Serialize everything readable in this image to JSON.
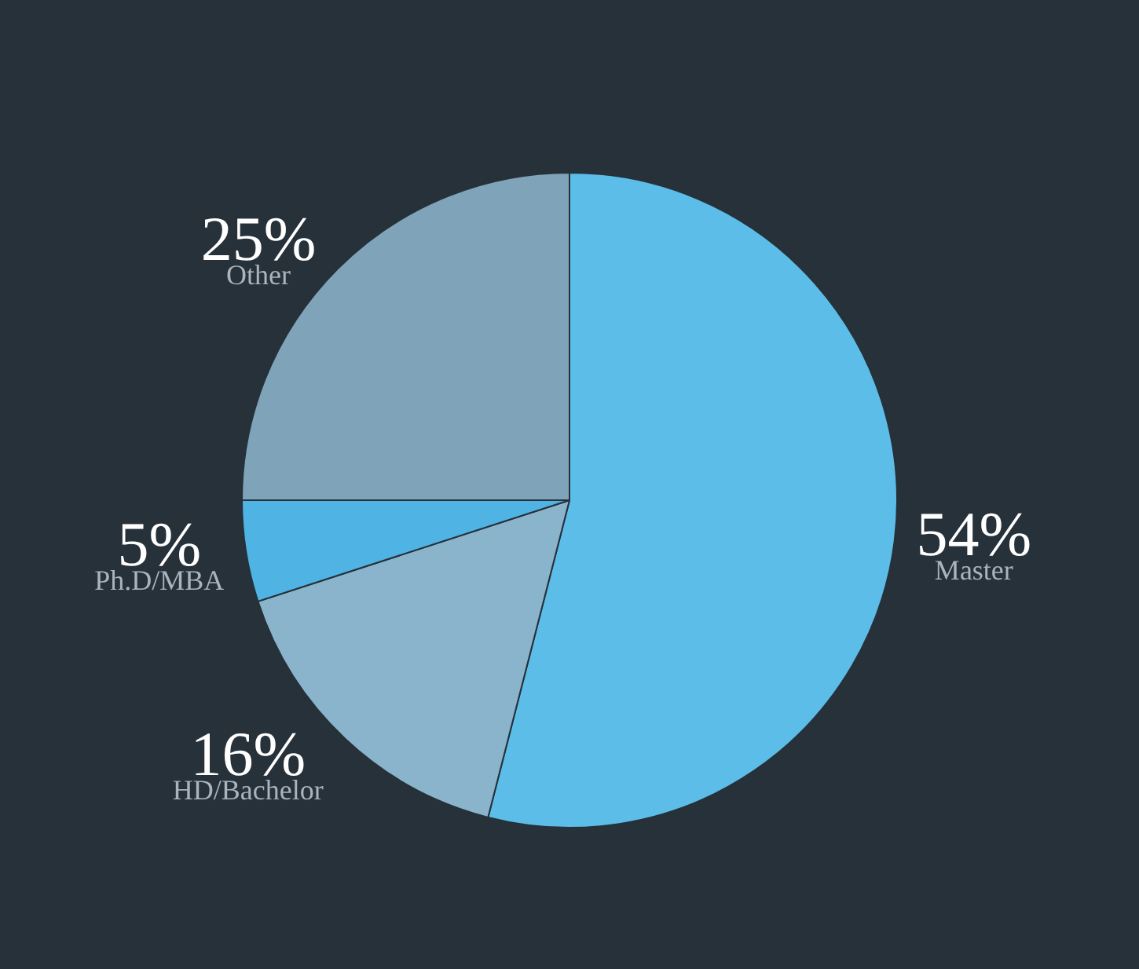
{
  "chart_data": {
    "type": "pie",
    "categories": [
      "Other",
      "Master",
      "HD/Bachelor",
      "Ph.D/MBA"
    ],
    "values": [
      25,
      54,
      16,
      5
    ],
    "value_labels": [
      "25%",
      "54%",
      "16%",
      "5%"
    ],
    "colors": [
      "#7fa3b8",
      "#5bbde8",
      "#8ab4cc",
      "#4fb3e3"
    ],
    "legend": false
  }
}
